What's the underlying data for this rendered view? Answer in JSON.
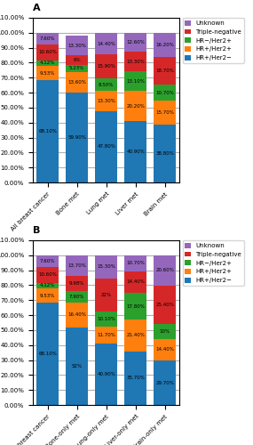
{
  "chart_data": [
    {
      "type": "bar",
      "stacked": true,
      "title": "A",
      "categories": [
        "All breast cancer",
        "Bone met",
        "Lung met",
        "Liver met",
        "Brain met"
      ],
      "series": [
        {
          "name": "HR+/Her2−",
          "values": [
            68.1,
            59.9,
            47.8,
            40.9,
            38.8
          ],
          "value_labels": [
            "68.10%",
            "59.90%",
            "47.80%",
            "40.90%",
            "38.80%"
          ]
        },
        {
          "name": "HR+/Her2+",
          "values": [
            9.53,
            13.6,
            13.3,
            20.2,
            15.7
          ],
          "value_labels": [
            "9.53%",
            "13.60%",
            "13.30%",
            "20.20%",
            "15.70%"
          ]
        },
        {
          "name": "HR−/Her2+",
          "values": [
            4.12,
            5.23,
            8.5,
            13.1,
            10.7
          ],
          "value_labels": [
            "4.12%",
            "5.23%",
            "8.50%",
            "13.10%",
            "10.70%"
          ]
        },
        {
          "name": "Triple-negative",
          "values": [
            10.6,
            6.0,
            15.9,
            13.3,
            18.7
          ],
          "value_labels": [
            "10.60%",
            "6%",
            "15.90%",
            "13.30%",
            "18.70%"
          ]
        },
        {
          "name": "Unknown",
          "values": [
            7.6,
            13.3,
            14.4,
            12.6,
            16.2
          ],
          "value_labels": [
            "7.60%",
            "13.30%",
            "14.40%",
            "12.60%",
            "16.20%"
          ]
        }
      ],
      "data_labels": true,
      "ylim": [
        0,
        110
      ],
      "yticks": [
        {
          "value": 0,
          "label": "0.00%"
        },
        {
          "value": 10,
          "label": "10.00%"
        },
        {
          "value": 20,
          "label": "20.00%"
        },
        {
          "value": 30,
          "label": "30.00%"
        },
        {
          "value": 40,
          "label": "40.00%"
        },
        {
          "value": 50,
          "label": "50.00%"
        },
        {
          "value": 60,
          "label": "60.00%"
        },
        {
          "value": 70,
          "label": "70.00%"
        },
        {
          "value": 80,
          "label": "80.00%"
        },
        {
          "value": 90,
          "label": "90.00%"
        },
        {
          "value": 100,
          "label": "100.00%"
        },
        {
          "value": 110,
          "label": "110.00%"
        }
      ],
      "grid": true,
      "legend": "upper left"
    },
    {
      "type": "bar",
      "stacked": true,
      "title": "B",
      "categories": [
        "All breast cancer",
        "Bone-only met",
        "Lung-only met",
        "Liver-only met",
        "Brain-only met"
      ],
      "series": [
        {
          "name": "HR+/Her2−",
          "values": [
            68.1,
            52.0,
            40.9,
            35.7,
            29.7
          ],
          "value_labels": [
            "68.10%",
            "52%",
            "40.90%",
            "35.70%",
            "29.70%"
          ]
        },
        {
          "name": "HR+/Her2+",
          "values": [
            9.53,
            16.4,
            11.7,
            21.4,
            14.4
          ],
          "value_labels": [
            "9.53%",
            "16.40%",
            "11.70%",
            "21.40%",
            "14.40%"
          ]
        },
        {
          "name": "HR−/Her2+",
          "values": [
            4.12,
            7.9,
            10.1,
            17.8,
            10.0
          ],
          "value_labels": [
            "4.12%",
            "7.90%",
            "10.10%",
            "17.80%",
            "10%"
          ]
        },
        {
          "name": "Triple-negative",
          "values": [
            10.6,
            9.98,
            22.0,
            14.4,
            25.4
          ],
          "value_labels": [
            "10.60%",
            "9.98%",
            "22%",
            "14.40%",
            "25.40%"
          ]
        },
        {
          "name": "Unknown",
          "values": [
            7.6,
            13.7,
            15.3,
            10.7,
            20.6
          ],
          "value_labels": [
            "7.60%",
            "13.70%",
            "15.30%",
            "10.70%",
            "20.60%"
          ]
        }
      ],
      "data_labels": true,
      "ylim": [
        0,
        110
      ],
      "yticks": [
        {
          "value": 0,
          "label": "0.00%"
        },
        {
          "value": 10,
          "label": "10.00%"
        },
        {
          "value": 20,
          "label": "20.00%"
        },
        {
          "value": 30,
          "label": "30.00%"
        },
        {
          "value": 40,
          "label": "40.00%"
        },
        {
          "value": 50,
          "label": "50.00%"
        },
        {
          "value": 60,
          "label": "60.00%"
        },
        {
          "value": 70,
          "label": "70.00%"
        },
        {
          "value": 80,
          "label": "80.00%"
        },
        {
          "value": 90,
          "label": "90.00%"
        },
        {
          "value": 100,
          "label": "100.00%"
        },
        {
          "value": 110,
          "label": "110.00%"
        }
      ],
      "grid": true,
      "legend": "upper left"
    }
  ]
}
